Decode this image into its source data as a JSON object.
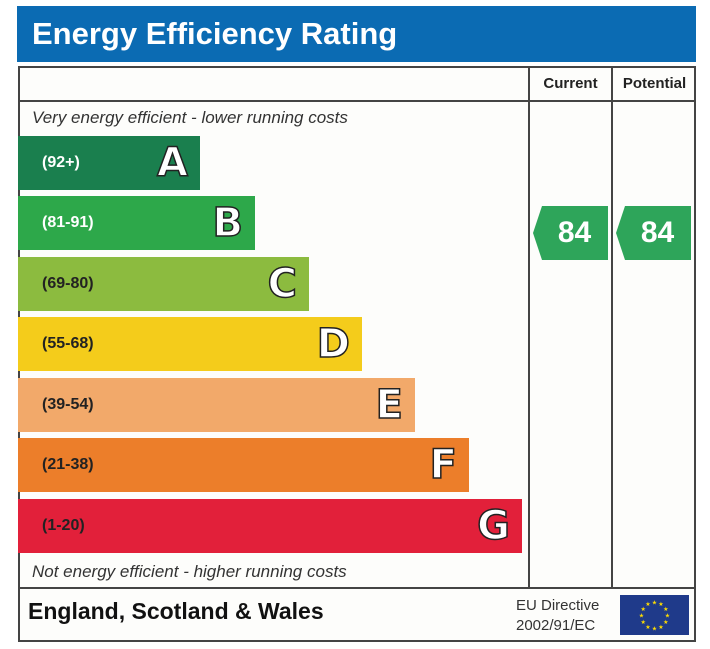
{
  "title": "Energy Efficiency Rating",
  "columns": {
    "current": "Current",
    "potential": "Potential"
  },
  "top_note": "Very energy efficient - lower running costs",
  "bottom_note": "Not energy efficient - higher running costs",
  "bands": [
    {
      "range": "(92+)",
      "letter": "A",
      "color": "#1a7f4e",
      "text_color": "#ffffff"
    },
    {
      "range": "(81-91)",
      "letter": "B",
      "color": "#2da84a",
      "text_color": "#ffffff"
    },
    {
      "range": "(69-80)",
      "letter": "C",
      "color": "#8cbb3f",
      "text_color": "#222222"
    },
    {
      "range": "(55-68)",
      "letter": "D",
      "color": "#f4cc1b",
      "text_color": "#222222"
    },
    {
      "range": "(39-54)",
      "letter": "E",
      "color": "#f2a96a",
      "text_color": "#222222"
    },
    {
      "range": "(21-38)",
      "letter": "F",
      "color": "#ec7e2a",
      "text_color": "#222222"
    },
    {
      "range": "(1-20)",
      "letter": "G",
      "color": "#e2203a",
      "text_color": "#222222"
    }
  ],
  "current_rating": {
    "value": "84",
    "band": "B",
    "color": "#2ea55a"
  },
  "potential_rating": {
    "value": "84",
    "band": "B",
    "color": "#2ea55a"
  },
  "footer": {
    "region": "England, Scotland & Wales",
    "directive_line1": "EU Directive",
    "directive_line2": "2002/91/EC",
    "flag_icon": "eu-flag-icon"
  }
}
